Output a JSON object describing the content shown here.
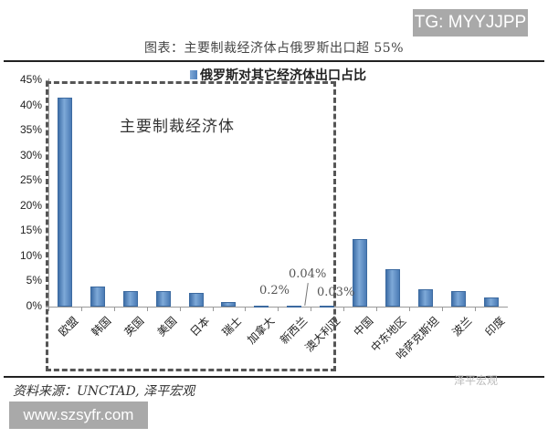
{
  "watermark_top": "TG: MYYJJPP",
  "figure_title": "图表：主要制裁经济体占俄罗斯出口超 55%",
  "box_label": "主要制裁经济体",
  "source": "资料来源：UNCTAD, 泽平宏观",
  "watermark_corner": "泽平宏观",
  "watermark_bottom": "www.szsyfr.com",
  "annotations": {
    "canada": "0.2%",
    "new_zealand": "0.04%",
    "australia": "0.03%"
  },
  "chart_data": {
    "type": "bar",
    "title": "图表：主要制裁经济体占俄罗斯出口超 55%",
    "legend": [
      "俄罗斯对其它经济体出口占比"
    ],
    "legend_position": "top",
    "xlabel": "",
    "ylabel": "",
    "ylim": [
      0,
      45
    ],
    "yticks": [
      "0%",
      "5%",
      "10%",
      "15%",
      "20%",
      "25%",
      "30%",
      "35%",
      "40%",
      "45%"
    ],
    "grid": false,
    "categories": [
      "欧盟",
      "韩国",
      "英国",
      "美国",
      "日本",
      "瑞士",
      "加拿大",
      "新西兰",
      "澳大利亚",
      "中国",
      "中东地区",
      "哈萨克斯坦",
      "波兰",
      "印度"
    ],
    "values": [
      41.5,
      4.0,
      3.1,
      3.1,
      2.7,
      0.9,
      0.2,
      0.04,
      0.03,
      13.5,
      7.5,
      3.4,
      3.0,
      1.8
    ],
    "units": "%",
    "highlight_group": {
      "label": "主要制裁经济体",
      "categories": [
        "欧盟",
        "韩国",
        "英国",
        "美国",
        "日本",
        "瑞士",
        "加拿大",
        "新西兰",
        "澳大利亚"
      ]
    }
  }
}
